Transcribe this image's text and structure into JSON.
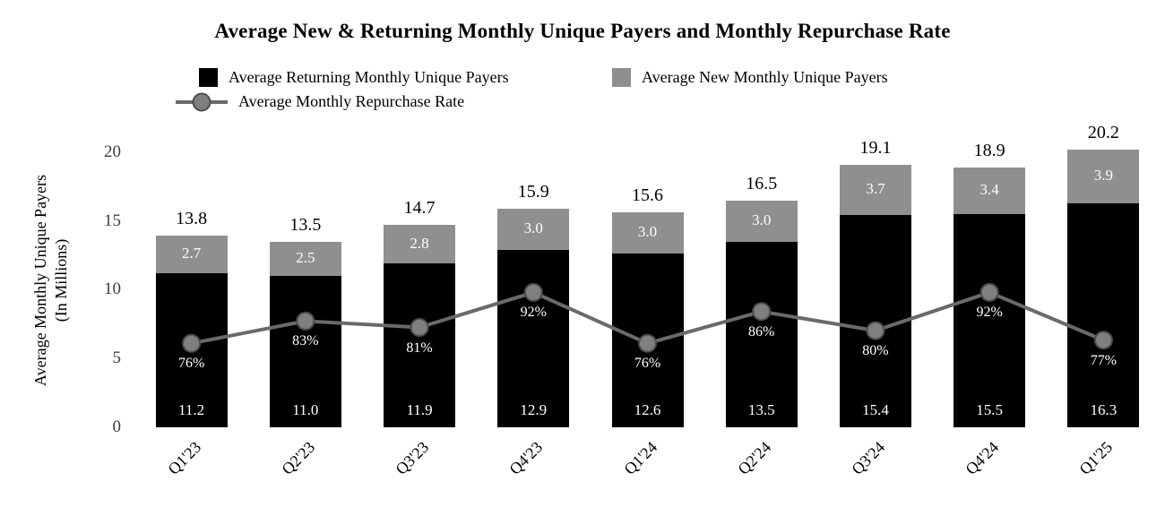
{
  "chart_data": {
    "type": "bar",
    "subtype": "stacked-bar-with-line",
    "title": "Average New & Returning Monthly Unique Payers and Monthly Repurchase Rate",
    "categories": [
      "Q1'23",
      "Q2'23",
      "Q3'23",
      "Q4'23",
      "Q1'24",
      "Q2'24",
      "Q3'24",
      "Q4'24",
      "Q1'25"
    ],
    "series": [
      {
        "name": "Average Returning Monthly Unique Payers",
        "type": "bar-stack",
        "color": "#000000",
        "values": [
          11.2,
          11.0,
          11.9,
          12.9,
          12.6,
          13.5,
          15.4,
          15.5,
          16.3
        ]
      },
      {
        "name": "Average New Monthly Unique Payers",
        "type": "bar-stack",
        "color": "#8f8f8f",
        "values": [
          2.7,
          2.5,
          2.8,
          3.0,
          3.0,
          3.0,
          3.7,
          3.4,
          3.9
        ]
      },
      {
        "name": "Average Monthly Repurchase Rate",
        "type": "line",
        "color": "#6a6a6a",
        "marker_fill": "#7f7f7f",
        "marker_stroke": "#4d4d4d",
        "values_pct": [
          76,
          83,
          81,
          92,
          76,
          86,
          80,
          92,
          77
        ]
      }
    ],
    "totals": [
      13.8,
      13.5,
      14.7,
      15.9,
      15.6,
      16.5,
      19.1,
      18.9,
      20.2
    ],
    "ylabel_line1": "Average Monthly Unique Payers",
    "ylabel_line2": "(In Millions)",
    "y_ticks": [
      0,
      5,
      10,
      15,
      20
    ],
    "ylim": [
      0,
      22
    ],
    "grid": false,
    "legend_position": "top"
  }
}
